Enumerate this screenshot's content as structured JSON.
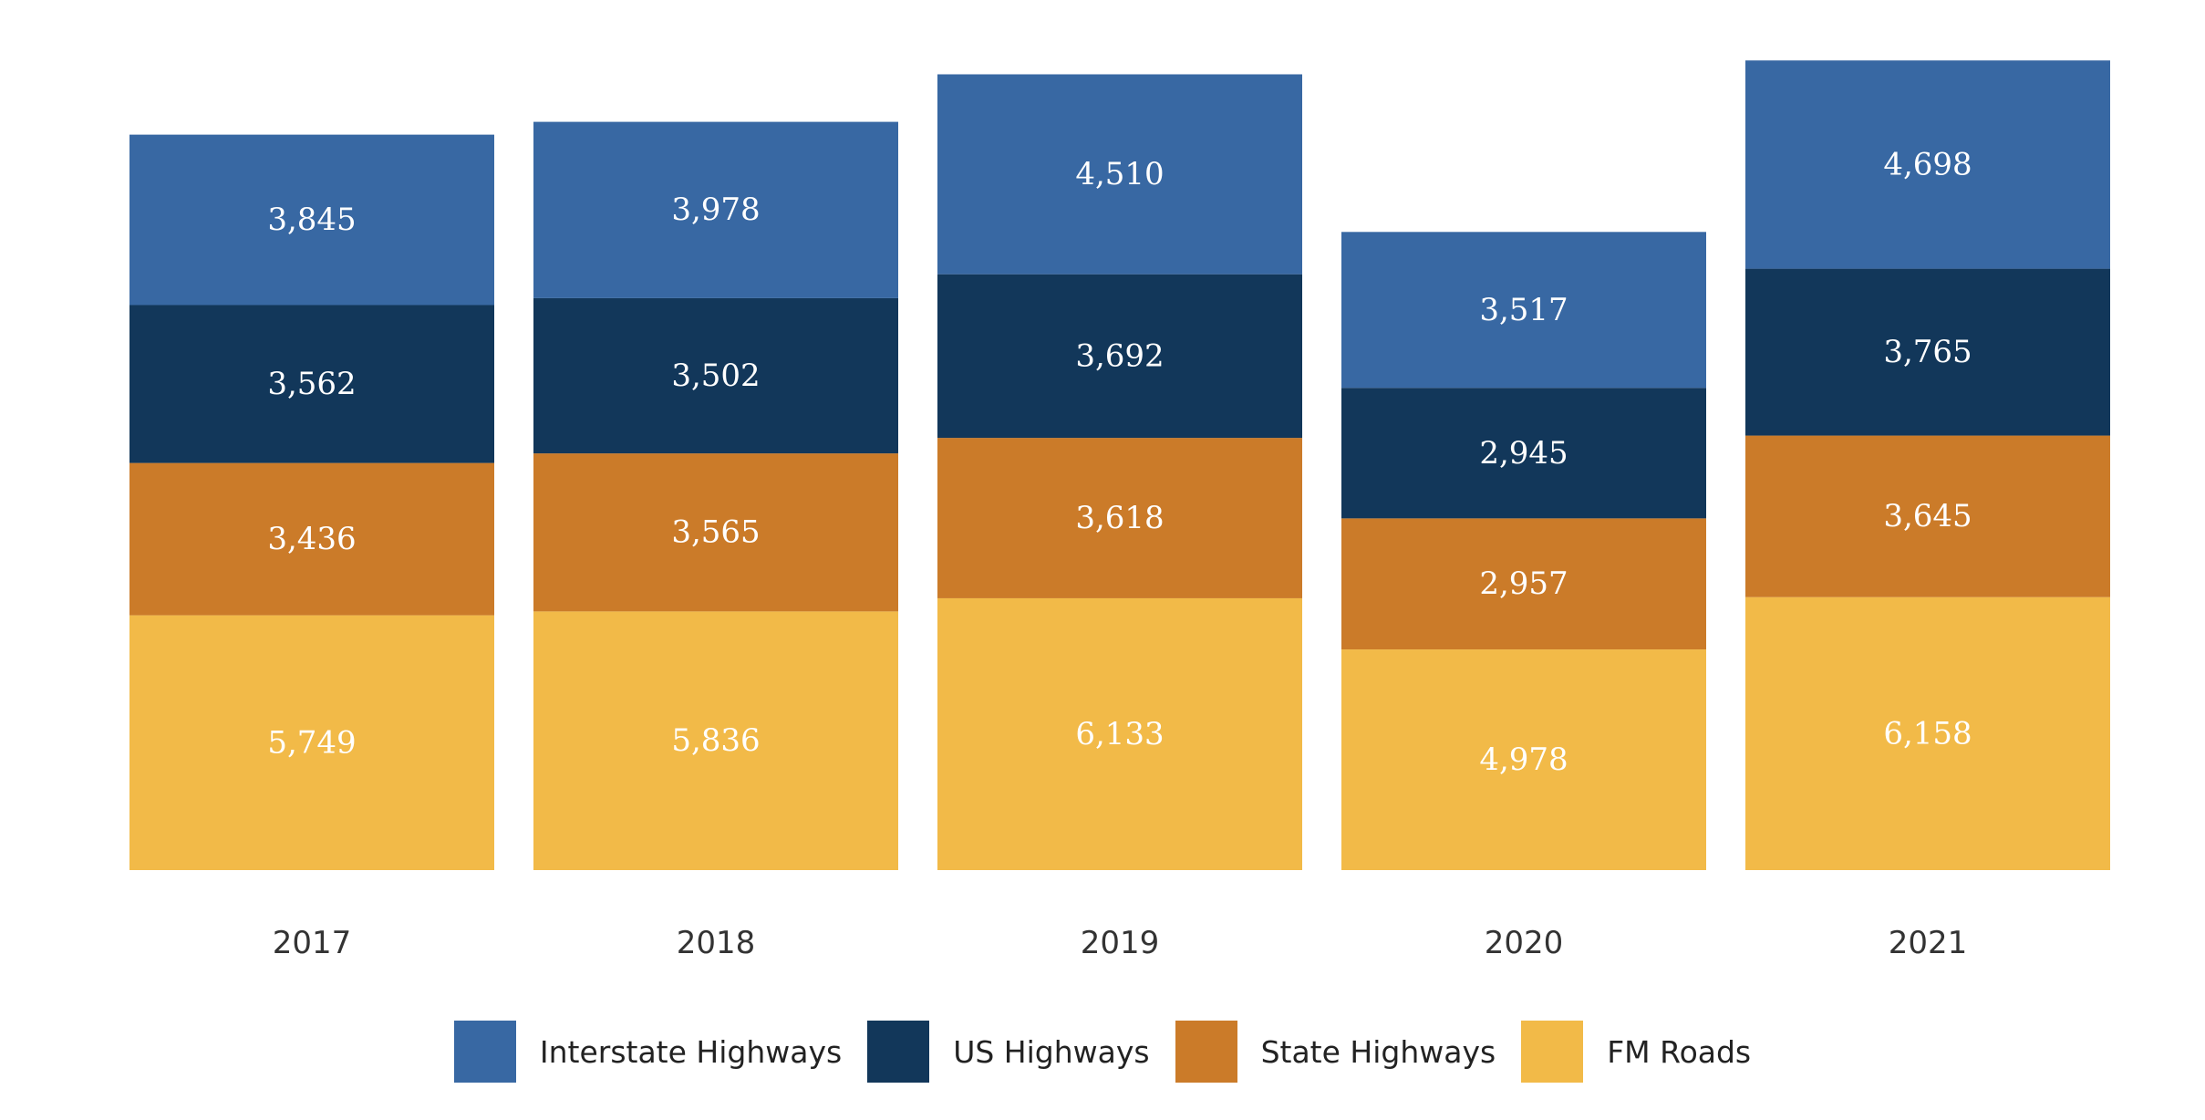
{
  "chart_data": {
    "type": "bar",
    "stacked": true,
    "categories": [
      "2017",
      "2018",
      "2019",
      "2020",
      "2021"
    ],
    "series": [
      {
        "name": "FM Roads",
        "color": "#F2BA48",
        "values": [
          5749,
          5836,
          6133,
          4978,
          6158
        ]
      },
      {
        "name": "State Highways",
        "color": "#CB7B29",
        "values": [
          3436,
          3565,
          3618,
          2957,
          3645
        ]
      },
      {
        "name": "US Highways",
        "color": "#12375A",
        "values": [
          3562,
          3502,
          3692,
          2945,
          3765
        ]
      },
      {
        "name": "Interstate Highways",
        "color": "#3868A3",
        "values": [
          3845,
          3978,
          4510,
          3517,
          4698
        ]
      }
    ],
    "data_labels": true,
    "data_label_color": "#ffffff",
    "title": "",
    "xlabel": "",
    "ylabel": "",
    "ylim": [
      0,
      18500
    ],
    "grid": false,
    "y_axis_visible": false,
    "legend_position": "bottom",
    "legend_order": [
      "Interstate Highways",
      "US Highways",
      "State Highways",
      "FM Roads"
    ]
  }
}
